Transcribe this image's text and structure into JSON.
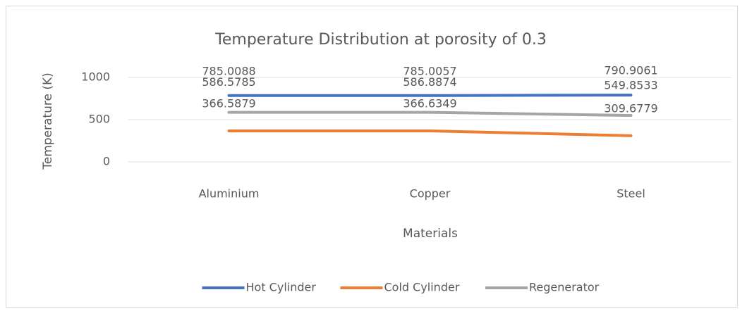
{
  "chart_data": {
    "type": "line",
    "title": "Temperature Distribution at porosity of 0.3",
    "x_label": "Materials",
    "y_label": "Temperature (K)",
    "categories": [
      "Aluminium",
      "Copper",
      "Steel"
    ],
    "series": [
      {
        "name": "Hot Cylinder",
        "color": "#4472c4",
        "values": [
          785.0088,
          785.0057,
          790.9061
        ]
      },
      {
        "name": "Cold Cylinder",
        "color": "#ed7d31",
        "values": [
          366.5879,
          366.6349,
          309.6779
        ]
      },
      {
        "name": "Regenerator",
        "color": "#a5a5a5",
        "values": [
          586.5785,
          586.8874,
          549.8533
        ]
      }
    ],
    "ylim": [
      0,
      1000
    ],
    "yticks": [
      0,
      500,
      1000
    ],
    "grid": true,
    "legend": "bottom"
  }
}
